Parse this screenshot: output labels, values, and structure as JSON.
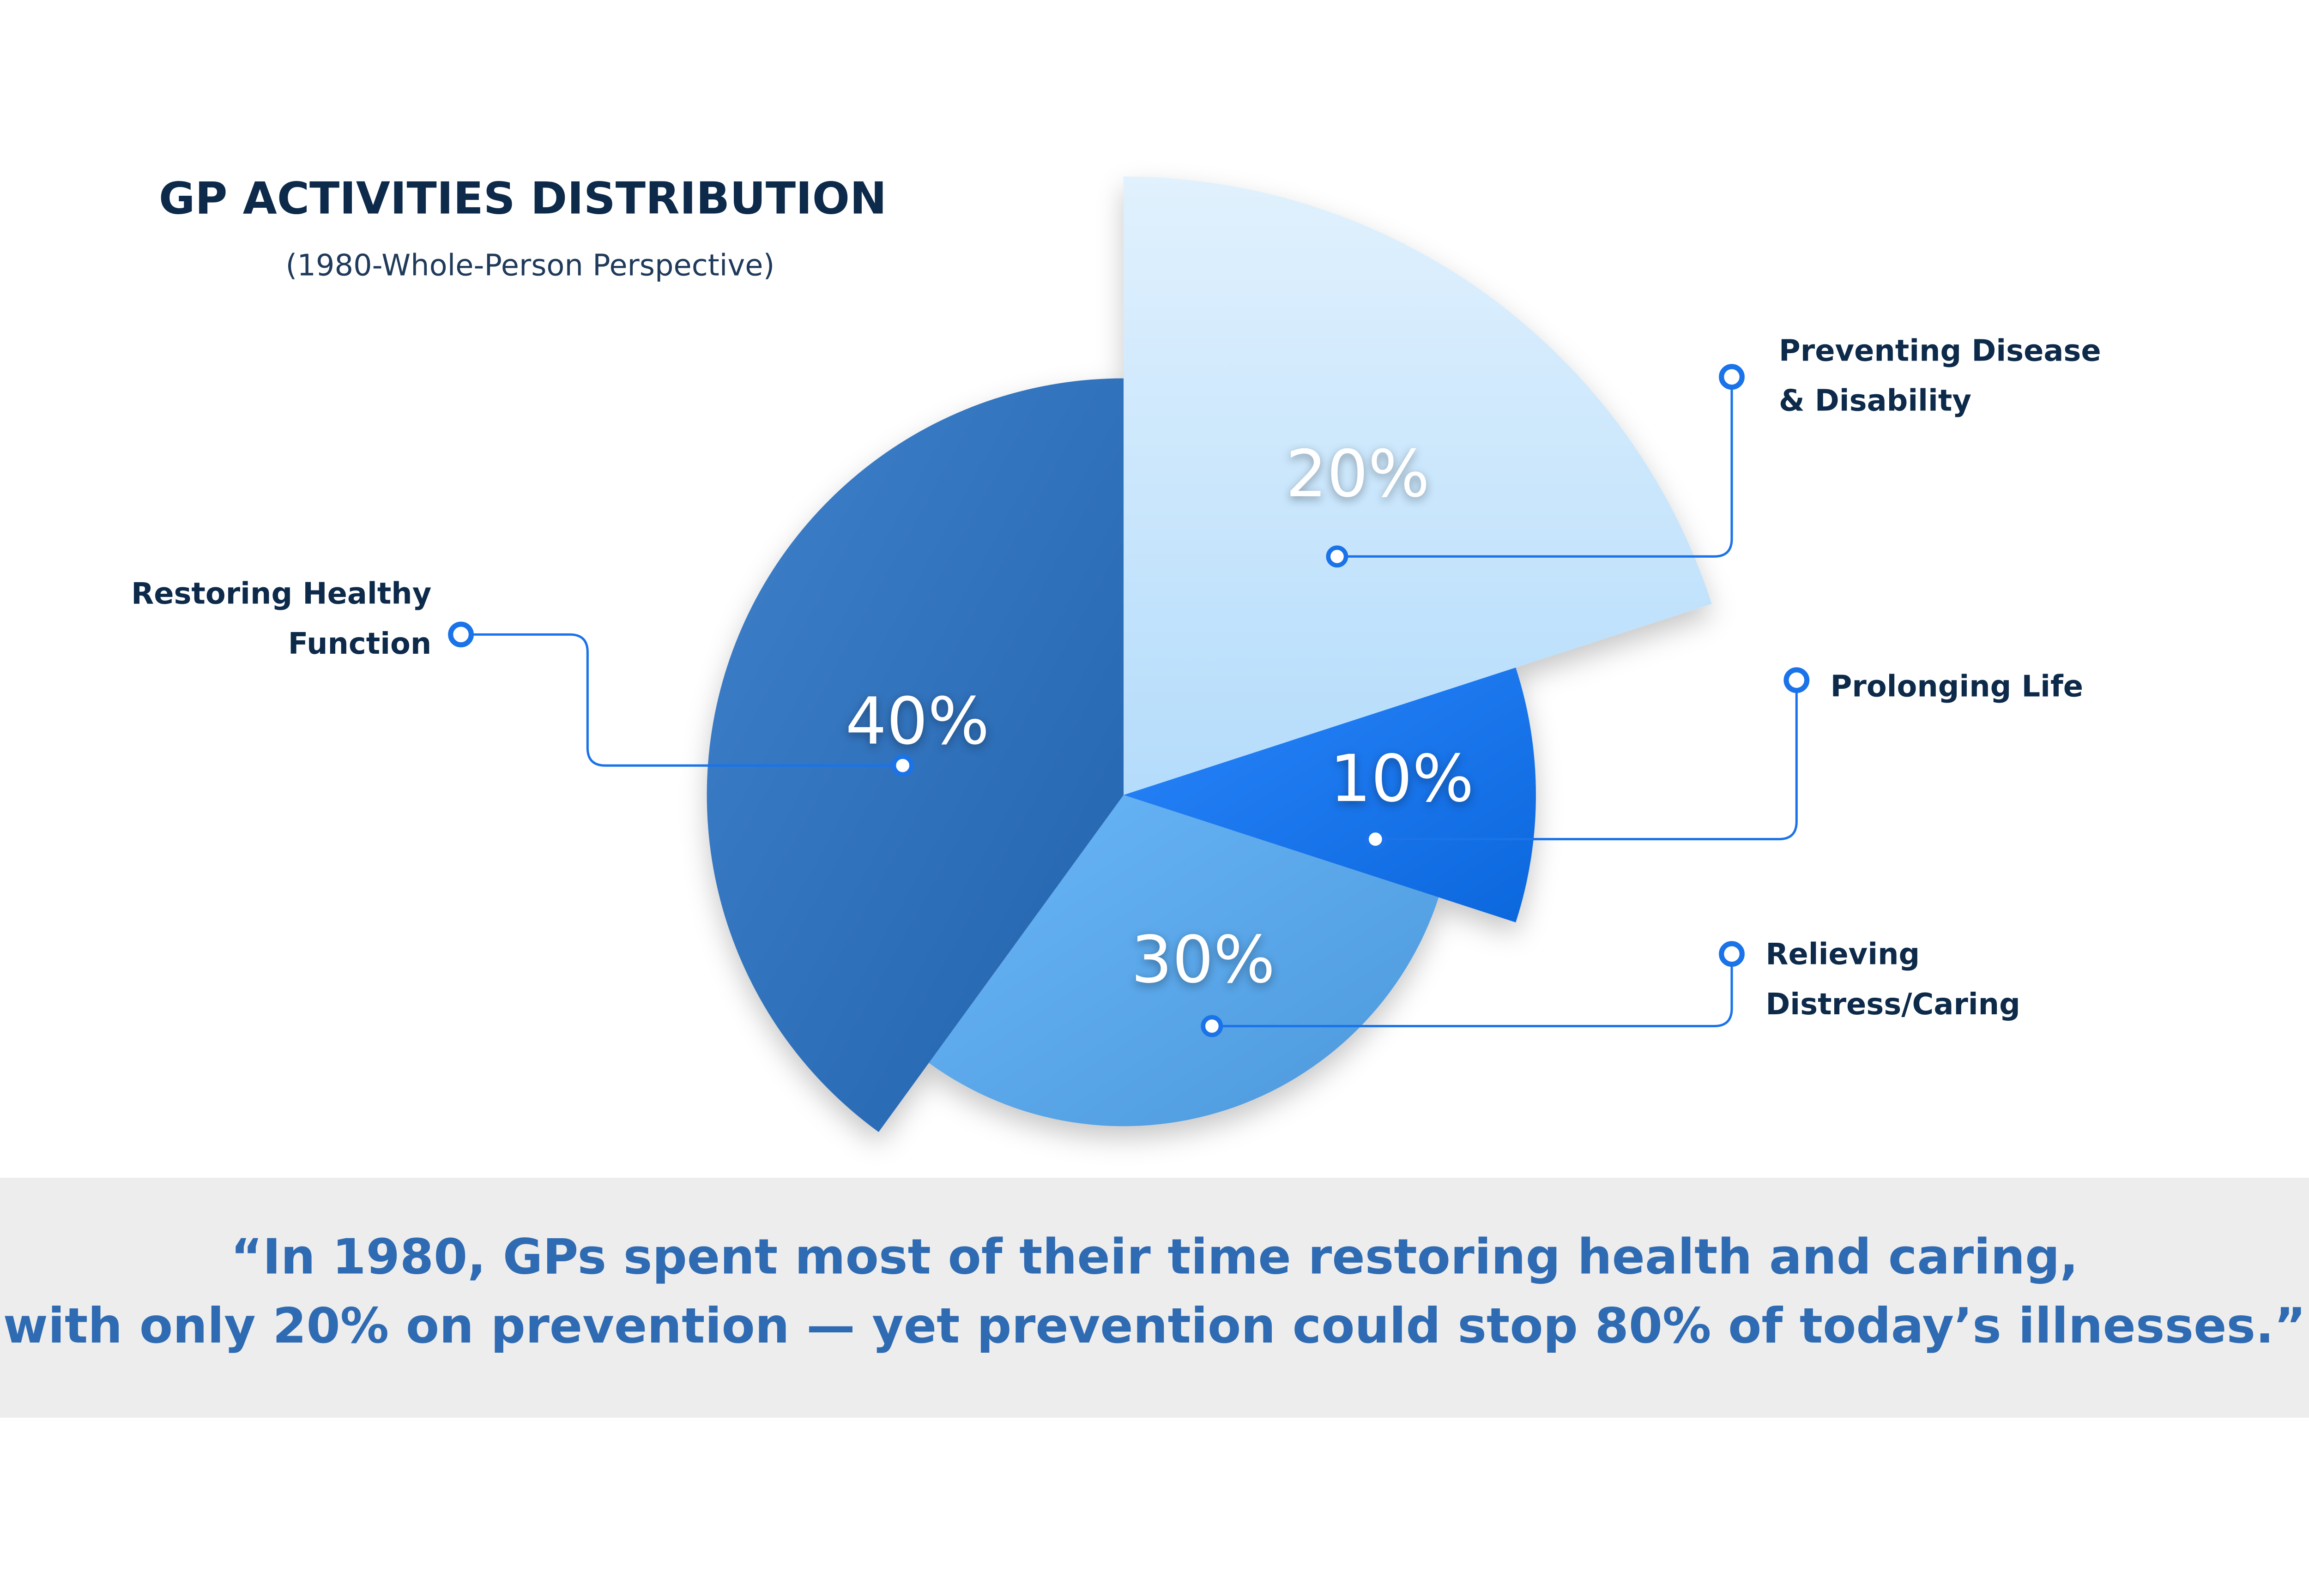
{
  "chart_data": {
    "type": "pie",
    "title": "GP ACTIVITIES DISTRIBUTION",
    "subtitle": "(1980-Whole-Person Perspective)",
    "categories": [
      "Preventing Disease & Disability",
      "Prolonging Life",
      "Relieving Distress/Caring",
      "Restoring Healthy Function"
    ],
    "values": [
      20,
      10,
      30,
      40
    ],
    "value_labels": [
      "20%",
      "10%",
      "30%",
      "40%"
    ],
    "colors": [
      "#b4dcfb",
      "#0a74fb",
      "#55acf8",
      "#2670c4"
    ],
    "annotations": [
      "“In 1980, GPs spent most of their time restoring health and caring,",
      "with only 20% on prevention — yet prevention could stop 80% of today’s illnesses.”"
    ]
  }
}
